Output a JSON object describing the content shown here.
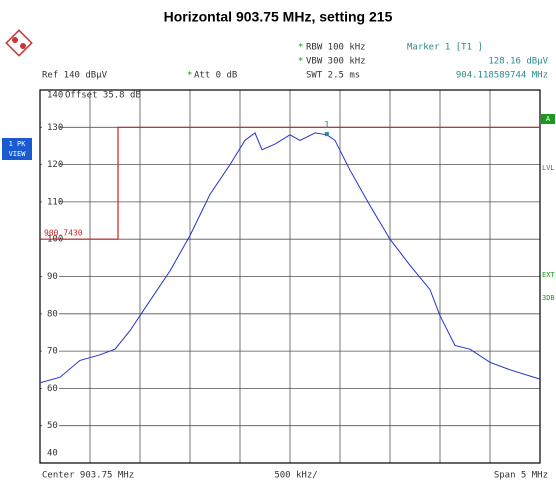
{
  "chart_data": {
    "type": "line",
    "title": "Horizontal 903.75 MHz, setting 215",
    "flag": "*",
    "rbw": "RBW 100 kHz",
    "vbw": "VBW 300 kHz",
    "swt": "SWT 2.5 ms",
    "ref": "Ref 140 dBµV",
    "att": "Att 0 dB",
    "offset": "Offset 35.8 dB",
    "trace_box": [
      "1 PK",
      "VIEW"
    ],
    "side_labels": [
      "A",
      "LVL",
      "EXT",
      "3DB"
    ],
    "limit_label": "900.7430",
    "marker": {
      "label": "Marker 1 [T1 ]",
      "value_label": "128.16 dBµV",
      "freq_label": "904.118589744 MHz",
      "id": "1",
      "x": 904.118589744,
      "value": 128.16,
      "color": "#2a8a8a"
    },
    "center_label": "Center 903.75 MHz",
    "div_label": "500 kHz/",
    "span_label": "Span 5 MHz",
    "xlim": [
      901.25,
      906.25
    ],
    "xticks": [
      901.25,
      901.75,
      902.25,
      902.75,
      903.25,
      903.75,
      904.25,
      904.75,
      905.25,
      905.75,
      906.25
    ],
    "ylim": [
      40,
      140
    ],
    "yticks": [
      40,
      50,
      60,
      70,
      80,
      90,
      100,
      110,
      120,
      130,
      140
    ],
    "grid": true,
    "series": [
      {
        "color": "#2233cc",
        "x": [
          901.25,
          901.45,
          901.65,
          901.85,
          902.0,
          902.15,
          902.35,
          902.55,
          902.75,
          902.95,
          903.15,
          903.3,
          903.4,
          903.47,
          903.6,
          903.75,
          903.85,
          904.0,
          904.12,
          904.2,
          904.35,
          904.55,
          904.75,
          904.95,
          905.15,
          905.25,
          905.4,
          905.55,
          905.75,
          905.95,
          906.25
        ],
        "values": [
          61.5,
          63,
          67.5,
          69,
          70.5,
          75.5,
          83.5,
          91.5,
          101,
          112,
          120,
          126.5,
          128.5,
          124,
          125.5,
          128,
          126.5,
          128.5,
          128,
          126.5,
          118.5,
          109,
          100,
          93,
          86.5,
          79.5,
          71.5,
          70.5,
          67,
          65,
          62.5
        ]
      },
      {
        "color": "#cc2222",
        "x": [
          901.25,
          902.03,
          902.03,
          906.25
        ],
        "values": [
          100,
          100,
          130,
          130
        ]
      }
    ]
  }
}
